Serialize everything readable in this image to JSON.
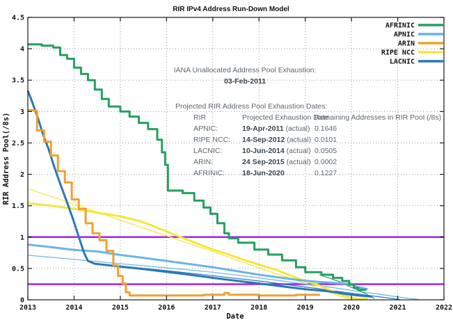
{
  "title": "RIR IPv4 Address Run-Down Model",
  "annotations": {
    "iana_line1": "IANA Unallocated Address Pool Exhaustion:",
    "iana_line2": "03-Feb-2011",
    "table_title": "Projected RIR Address Pool Exhaustion Dates:",
    "table_headers": {
      "rir": "RIR",
      "date": "Projected Exhaustion Date",
      "remaining": "Remaining Addresses in RIR Pool (/8s)"
    },
    "table_rows": [
      {
        "rir": "APNIC:",
        "date": "19-Apr-2011",
        "note": " (actual)",
        "remaining": "0.1646"
      },
      {
        "rir": "RIPE NCC:",
        "date": "14-Sep-2012",
        "note": " (actual)",
        "remaining": "0.0101"
      },
      {
        "rir": "LACNIC:",
        "date": "10-Jun-2014",
        "note": " (actual)",
        "remaining": "0.0505"
      },
      {
        "rir": "ARIN:",
        "date": "24 Sep-2015",
        "note": " (actual)",
        "remaining": "0.0002"
      },
      {
        "rir": "AFRINIC:",
        "date": "18-Jun-2020",
        "note": "",
        "remaining": "0.1227"
      }
    ]
  },
  "legend": {
    "position": "top-right-inside",
    "items": [
      {
        "label": "AFRINIC",
        "color": "#23a05f"
      },
      {
        "label": "APNIC",
        "color": "#6cb4e4"
      },
      {
        "label": "ARIN",
        "color": "#f0a030"
      },
      {
        "label": "RIPE NCC",
        "color": "#f5e63c"
      },
      {
        "label": "LACNIC",
        "color": "#2a78b8"
      }
    ]
  },
  "chart_data": {
    "type": "line",
    "title": "RIR IPv4 Address Run-Down Model",
    "xlabel": "Date",
    "ylabel": "RIR Address Pool(/8s)",
    "x_range": [
      2013,
      2022
    ],
    "y_range": [
      0,
      4.5
    ],
    "x_ticks": [
      2013,
      2014,
      2015,
      2016,
      2017,
      2018,
      2019,
      2020,
      2021,
      2022
    ],
    "y_ticks": [
      0,
      0.5,
      1,
      1.5,
      2,
      2.5,
      3,
      3.5,
      4,
      4.5
    ],
    "grid": "dotted",
    "colors": {
      "grid": "#9a9a9a",
      "border": "#1a1a1a",
      "threshold": "#a020f0"
    },
    "hlines": [
      {
        "name": "threshold-1.0",
        "y": 1.0,
        "color": "#a020f0",
        "width": 2.5
      },
      {
        "name": "threshold-0.25",
        "y": 0.25,
        "color": "#a020f0",
        "width": 2.5
      }
    ],
    "series": [
      {
        "name": "RIPE NCC model",
        "color": "#f5e63c",
        "width": 1.2,
        "style": "line",
        "points": [
          [
            2013.0,
            1.77
          ],
          [
            2014.0,
            1.525
          ],
          [
            2015.0,
            1.27
          ],
          [
            2016.0,
            1.02
          ],
          [
            2017.0,
            0.77
          ],
          [
            2018.0,
            0.51
          ],
          [
            2019.0,
            0.26
          ],
          [
            2019.95,
            0.005
          ]
        ]
      },
      {
        "name": "APNIC model",
        "color": "#6cb4e4",
        "width": 1.2,
        "style": "line",
        "points": [
          [
            2013.0,
            0.71
          ],
          [
            2014.0,
            0.645
          ],
          [
            2015.0,
            0.575
          ],
          [
            2016.0,
            0.51
          ],
          [
            2017.0,
            0.44
          ],
          [
            2018.0,
            0.35
          ],
          [
            2019.0,
            0.25
          ],
          [
            2019.5,
            0.205
          ],
          [
            2020.0,
            0.15
          ],
          [
            2020.5,
            0.1
          ],
          [
            2021.0,
            0.045
          ],
          [
            2021.45,
            0.005
          ]
        ]
      },
      {
        "name": "LACNIC model",
        "color": "#2a78b8",
        "width": 1.2,
        "style": "line",
        "points": [
          [
            2014.4,
            0.585
          ],
          [
            2015.0,
            0.54
          ],
          [
            2016.0,
            0.465
          ],
          [
            2017.0,
            0.385
          ],
          [
            2018.0,
            0.3
          ],
          [
            2019.0,
            0.205
          ],
          [
            2020.0,
            0.105
          ],
          [
            2021.05,
            0.005
          ]
        ]
      },
      {
        "name": "AFRINIC model",
        "color": "#23a05f",
        "width": 1.2,
        "style": "line",
        "points": [
          [
            2019.3,
            0.4
          ],
          [
            2019.7,
            0.3
          ],
          [
            2020.0,
            0.2
          ],
          [
            2020.25,
            0.12
          ],
          [
            2020.5,
            0.02
          ]
        ]
      },
      {
        "name": "RIPE NCC",
        "color": "#f5e63c",
        "width": 3,
        "style": "line",
        "points": [
          [
            2013.0,
            1.54
          ],
          [
            2013.5,
            1.5
          ],
          [
            2014.0,
            1.45
          ],
          [
            2014.5,
            1.39
          ],
          [
            2015.0,
            1.33
          ],
          [
            2015.4,
            1.26
          ],
          [
            2015.7,
            1.18
          ],
          [
            2016.0,
            1.09
          ],
          [
            2016.3,
            1.0
          ],
          [
            2016.65,
            0.9
          ],
          [
            2017.0,
            0.8
          ],
          [
            2017.35,
            0.72
          ],
          [
            2017.7,
            0.63
          ],
          [
            2018.05,
            0.55
          ],
          [
            2018.4,
            0.47
          ],
          [
            2018.7,
            0.38
          ],
          [
            2019.0,
            0.3
          ],
          [
            2019.3,
            0.23
          ],
          [
            2019.55,
            0.15
          ],
          [
            2019.8,
            0.08
          ],
          [
            2019.95,
            0.04
          ],
          [
            2020.1,
            0.02
          ],
          [
            2020.35,
            0.015
          ]
        ]
      },
      {
        "name": "APNIC",
        "color": "#6cb4e4",
        "width": 3,
        "style": "line",
        "points": [
          [
            2013.0,
            0.88
          ],
          [
            2013.5,
            0.84
          ],
          [
            2014.0,
            0.795
          ],
          [
            2014.5,
            0.77
          ],
          [
            2015.0,
            0.715
          ],
          [
            2015.5,
            0.67
          ],
          [
            2016.0,
            0.62
          ],
          [
            2016.5,
            0.57
          ],
          [
            2017.0,
            0.52
          ],
          [
            2017.5,
            0.46
          ],
          [
            2018.0,
            0.4
          ],
          [
            2018.5,
            0.35
          ],
          [
            2018.9,
            0.31
          ],
          [
            2019.3,
            0.285
          ],
          [
            2019.7,
            0.265
          ],
          [
            2020.0,
            0.255
          ],
          [
            2020.1,
            0.21
          ],
          [
            2020.35,
            0.17
          ]
        ]
      },
      {
        "name": "LACNIC",
        "color": "#2a78b8",
        "width": 3,
        "style": "line",
        "points": [
          [
            2013.0,
            3.33
          ],
          [
            2013.08,
            3.18
          ],
          [
            2013.16,
            3.02
          ],
          [
            2013.24,
            2.85
          ],
          [
            2013.32,
            2.65
          ],
          [
            2013.45,
            2.4
          ],
          [
            2013.57,
            2.12
          ],
          [
            2013.7,
            1.85
          ],
          [
            2013.84,
            1.57
          ],
          [
            2013.97,
            1.3
          ],
          [
            2014.06,
            1.1
          ],
          [
            2014.14,
            0.92
          ],
          [
            2014.22,
            0.74
          ],
          [
            2014.3,
            0.62
          ],
          [
            2014.45,
            0.575
          ],
          [
            2014.8,
            0.545
          ],
          [
            2015.0,
            0.53
          ],
          [
            2015.5,
            0.49
          ],
          [
            2016.0,
            0.445
          ],
          [
            2016.5,
            0.4
          ],
          [
            2017.0,
            0.35
          ],
          [
            2017.5,
            0.305
          ],
          [
            2018.0,
            0.26
          ],
          [
            2018.5,
            0.215
          ],
          [
            2019.0,
            0.17
          ],
          [
            2019.5,
            0.135
          ],
          [
            2019.9,
            0.09
          ],
          [
            2020.15,
            0.07
          ],
          [
            2020.45,
            0.05
          ]
        ]
      },
      {
        "name": "ARIN",
        "color": "#f0a030",
        "width": 3,
        "style": "step",
        "points": [
          [
            2013.0,
            3.02
          ],
          [
            2013.18,
            3.0
          ],
          [
            2013.2,
            2.7
          ],
          [
            2013.35,
            2.52
          ],
          [
            2013.5,
            2.3
          ],
          [
            2013.65,
            2.05
          ],
          [
            2013.8,
            1.87
          ],
          [
            2013.95,
            1.6
          ],
          [
            2014.1,
            1.45
          ],
          [
            2014.25,
            1.22
          ],
          [
            2014.4,
            1.06
          ],
          [
            2014.55,
            0.95
          ],
          [
            2014.7,
            0.78
          ],
          [
            2014.85,
            0.55
          ],
          [
            2014.95,
            0.38
          ],
          [
            2015.05,
            0.26
          ],
          [
            2015.12,
            0.12
          ],
          [
            2015.2,
            0.07
          ],
          [
            2016.0,
            0.07
          ],
          [
            2016.8,
            0.08
          ],
          [
            2017.25,
            0.11
          ],
          [
            2017.35,
            0.08
          ],
          [
            2018.0,
            0.07
          ],
          [
            2018.8,
            0.08
          ],
          [
            2019.3,
            0.065
          ]
        ]
      },
      {
        "name": "AFRINIC",
        "color": "#23a05f",
        "width": 3,
        "style": "step",
        "points": [
          [
            2013.0,
            4.07
          ],
          [
            2013.3,
            4.05
          ],
          [
            2013.55,
            4.02
          ],
          [
            2013.7,
            3.9
          ],
          [
            2013.85,
            3.84
          ],
          [
            2014.0,
            3.7
          ],
          [
            2014.15,
            3.6
          ],
          [
            2014.3,
            3.5
          ],
          [
            2014.45,
            3.35
          ],
          [
            2014.6,
            3.2
          ],
          [
            2014.75,
            3.08
          ],
          [
            2015.0,
            3.0
          ],
          [
            2015.2,
            2.92
          ],
          [
            2015.4,
            2.82
          ],
          [
            2015.6,
            2.72
          ],
          [
            2015.8,
            2.55
          ],
          [
            2015.9,
            2.35
          ],
          [
            2015.97,
            2.15
          ],
          [
            2016.03,
            1.74
          ],
          [
            2016.35,
            1.7
          ],
          [
            2016.6,
            1.58
          ],
          [
            2016.8,
            1.47
          ],
          [
            2016.95,
            1.37
          ],
          [
            2017.1,
            1.22
          ],
          [
            2017.25,
            1.06
          ],
          [
            2017.35,
            0.98
          ],
          [
            2017.55,
            0.91
          ],
          [
            2017.9,
            0.8
          ],
          [
            2018.2,
            0.72
          ],
          [
            2018.5,
            0.63
          ],
          [
            2018.8,
            0.52
          ],
          [
            2019.0,
            0.44
          ],
          [
            2019.35,
            0.4
          ],
          [
            2019.6,
            0.35
          ],
          [
            2019.8,
            0.3
          ],
          [
            2019.95,
            0.24
          ],
          [
            2020.05,
            0.19
          ],
          [
            2020.15,
            0.16
          ],
          [
            2020.3,
            0.145
          ]
        ]
      }
    ]
  }
}
